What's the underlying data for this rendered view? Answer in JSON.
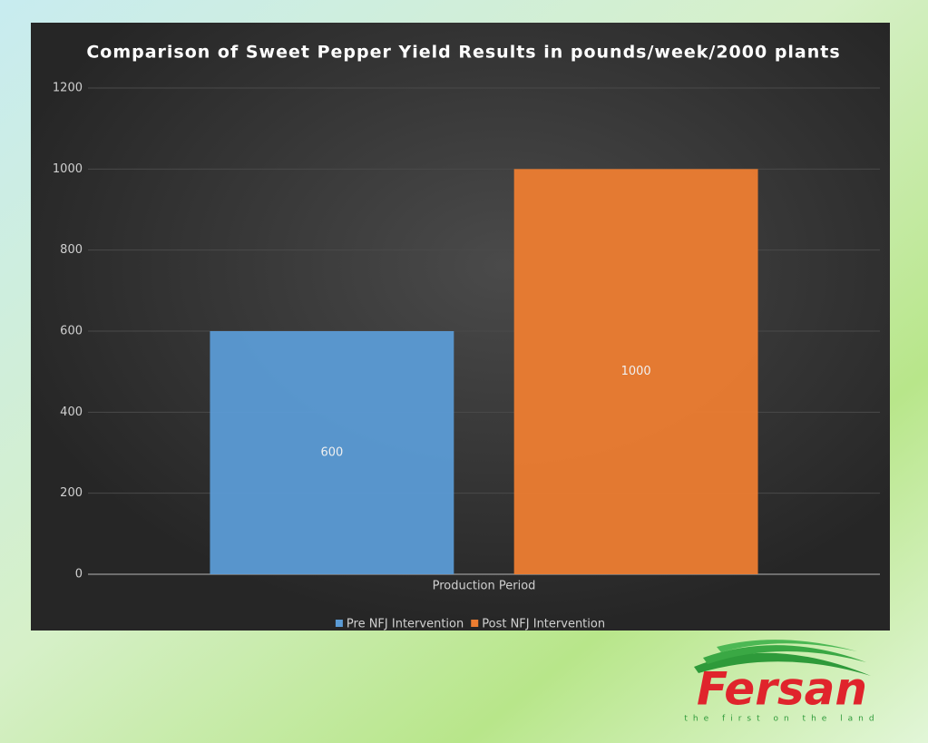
{
  "chart_data": {
    "type": "bar",
    "title": "Comparison of Sweet Pepper Yield Results in pounds/week/2000 plants",
    "categories": [
      "Production Period"
    ],
    "series": [
      {
        "name": "Pre NFJ Intervention",
        "color": "#5b9bd5",
        "values": [
          600
        ]
      },
      {
        "name": "Post NFJ Intervention",
        "color": "#ed7d31",
        "values": [
          1000
        ]
      }
    ],
    "ylim": [
      0,
      1200
    ],
    "yticks": [
      0,
      200,
      400,
      600,
      800,
      1000,
      1200
    ],
    "grid": true,
    "legend": "bottom",
    "data_labels": true
  },
  "logo": {
    "name": "Fersan",
    "tagline": "the first on the land"
  }
}
